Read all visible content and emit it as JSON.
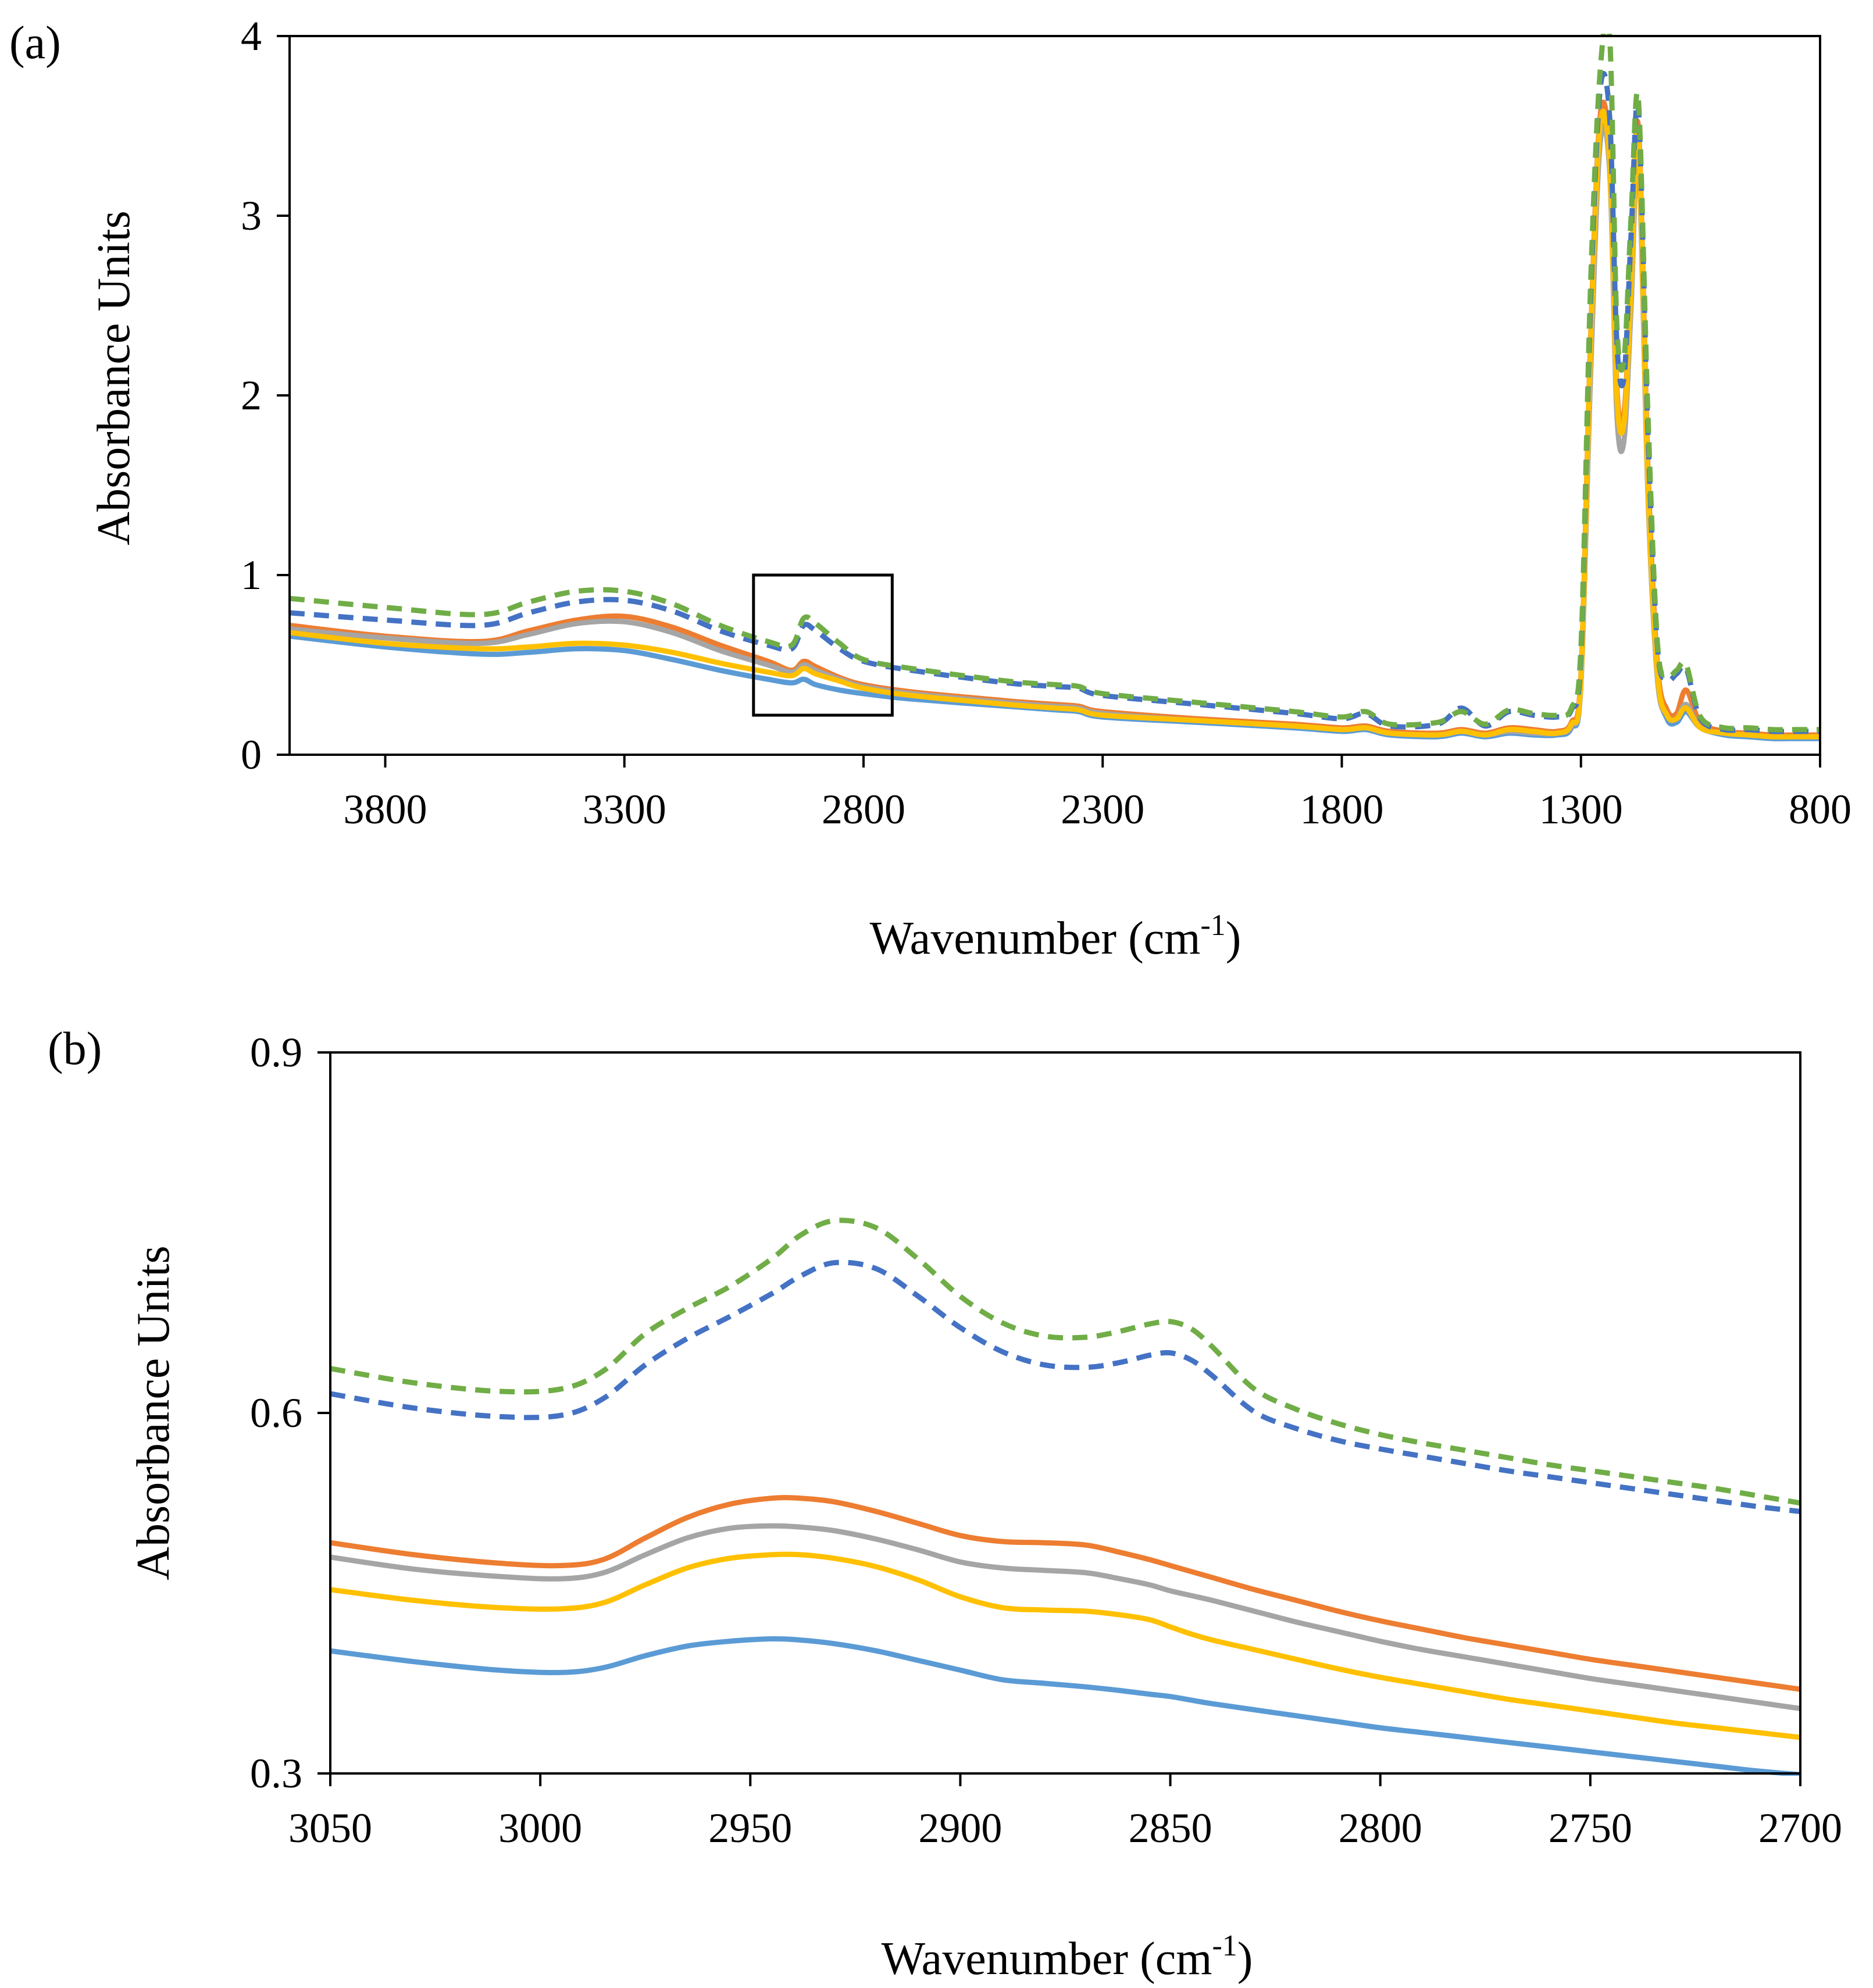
{
  "panels": [
    {
      "label": "(a)",
      "xlabel": "Wavenumber (cm",
      "xlabel_sup": "-1",
      "xlabel_close": ")",
      "ylabel": "Absorbance Units"
    },
    {
      "label": "(b)",
      "xlabel": "Wavenumber (cm",
      "xlabel_sup": "-1",
      "xlabel_close": ")",
      "ylabel": "Absorbance Units"
    }
  ],
  "chart_data": [
    {
      "type": "line",
      "title": "",
      "xlabel": "Wavenumber (cm-1)",
      "ylabel": "Absorbance Units",
      "xlim": [
        4000,
        800
      ],
      "ylim": [
        0,
        4
      ],
      "x_reversed": true,
      "xticks": [
        3800,
        3300,
        2800,
        2300,
        1800,
        1300,
        800
      ],
      "yticks": [
        0,
        1,
        2,
        3,
        4
      ],
      "grid": false,
      "legend": "none",
      "annotation": {
        "type": "rectangle",
        "x_range": [
          3030,
          2740
        ],
        "y_range": [
          0.22,
          1.0
        ]
      },
      "x": [
        4000,
        3800,
        3600,
        3500,
        3400,
        3300,
        3200,
        3100,
        3000,
        2950,
        2925,
        2900,
        2850,
        2800,
        2700,
        2500,
        2400,
        2350,
        2300,
        2100,
        1900,
        1800,
        1750,
        1700,
        1600,
        1550,
        1500,
        1450,
        1400,
        1350,
        1320,
        1300,
        1280,
        1260,
        1240,
        1225,
        1210,
        1195,
        1180,
        1160,
        1140,
        1120,
        1100,
        1080,
        1050,
        1000,
        950,
        900,
        850,
        800
      ],
      "series": [
        {
          "name": "",
          "color": "#5B9BD5",
          "dash": false,
          "values": [
            0.66,
            0.6,
            0.56,
            0.57,
            0.59,
            0.58,
            0.53,
            0.47,
            0.42,
            0.4,
            0.42,
            0.39,
            0.36,
            0.34,
            0.31,
            0.27,
            0.25,
            0.24,
            0.21,
            0.18,
            0.15,
            0.13,
            0.14,
            0.11,
            0.1,
            0.12,
            0.1,
            0.12,
            0.11,
            0.11,
            0.15,
            0.4,
            2.2,
            3.5,
            3.3,
            2.0,
            1.85,
            2.6,
            3.45,
            1.5,
            0.45,
            0.2,
            0.18,
            0.24,
            0.15,
            0.11,
            0.1,
            0.09,
            0.09,
            0.09
          ]
        },
        {
          "name": "",
          "color": "#ED7D31",
          "dash": false,
          "values": [
            0.72,
            0.66,
            0.63,
            0.69,
            0.75,
            0.77,
            0.71,
            0.61,
            0.52,
            0.47,
            0.52,
            0.49,
            0.43,
            0.39,
            0.35,
            0.3,
            0.28,
            0.27,
            0.24,
            0.2,
            0.17,
            0.15,
            0.16,
            0.13,
            0.12,
            0.14,
            0.12,
            0.15,
            0.14,
            0.13,
            0.18,
            0.45,
            2.3,
            3.55,
            3.35,
            2.05,
            1.9,
            2.65,
            3.5,
            1.6,
            0.5,
            0.25,
            0.23,
            0.36,
            0.18,
            0.13,
            0.12,
            0.11,
            0.11,
            0.11
          ]
        },
        {
          "name": "",
          "color": "#A5A5A5",
          "dash": false,
          "values": [
            0.7,
            0.65,
            0.62,
            0.67,
            0.73,
            0.74,
            0.68,
            0.58,
            0.5,
            0.46,
            0.5,
            0.47,
            0.42,
            0.38,
            0.34,
            0.29,
            0.27,
            0.26,
            0.23,
            0.19,
            0.16,
            0.14,
            0.15,
            0.12,
            0.11,
            0.13,
            0.11,
            0.13,
            0.12,
            0.12,
            0.16,
            0.4,
            2.1,
            3.4,
            3.25,
            1.9,
            1.75,
            2.5,
            3.35,
            1.45,
            0.42,
            0.22,
            0.2,
            0.28,
            0.15,
            0.12,
            0.11,
            0.1,
            0.1,
            0.1
          ]
        },
        {
          "name": "",
          "color": "#FFC000",
          "dash": false,
          "values": [
            0.68,
            0.62,
            0.59,
            0.6,
            0.62,
            0.61,
            0.57,
            0.51,
            0.46,
            0.44,
            0.48,
            0.45,
            0.41,
            0.37,
            0.33,
            0.28,
            0.26,
            0.25,
            0.22,
            0.19,
            0.16,
            0.14,
            0.15,
            0.12,
            0.11,
            0.13,
            0.11,
            0.14,
            0.13,
            0.12,
            0.17,
            0.42,
            2.25,
            3.5,
            3.3,
            2.0,
            1.85,
            2.6,
            3.45,
            1.5,
            0.45,
            0.22,
            0.2,
            0.26,
            0.15,
            0.12,
            0.11,
            0.1,
            0.1,
            0.1
          ]
        },
        {
          "name": "",
          "color": "#4472C4",
          "dash": true,
          "values": [
            0.79,
            0.75,
            0.72,
            0.79,
            0.85,
            0.86,
            0.8,
            0.69,
            0.61,
            0.59,
            0.72,
            0.69,
            0.59,
            0.52,
            0.47,
            0.4,
            0.38,
            0.37,
            0.33,
            0.28,
            0.23,
            0.2,
            0.23,
            0.16,
            0.17,
            0.26,
            0.16,
            0.24,
            0.22,
            0.21,
            0.25,
            0.55,
            2.5,
            3.7,
            3.55,
            2.3,
            2.1,
            2.9,
            3.6,
            1.8,
            0.6,
            0.42,
            0.45,
            0.48,
            0.2,
            0.14,
            0.14,
            0.13,
            0.13,
            0.13
          ]
        },
        {
          "name": "",
          "color": "#70AD47",
          "dash": true,
          "values": [
            0.87,
            0.82,
            0.78,
            0.85,
            0.91,
            0.91,
            0.84,
            0.72,
            0.63,
            0.61,
            0.76,
            0.73,
            0.62,
            0.53,
            0.48,
            0.41,
            0.39,
            0.38,
            0.34,
            0.29,
            0.24,
            0.21,
            0.24,
            0.17,
            0.18,
            0.24,
            0.17,
            0.25,
            0.23,
            0.22,
            0.26,
            0.6,
            2.6,
            3.8,
            4.0,
            2.4,
            2.2,
            3.0,
            3.65,
            1.9,
            0.62,
            0.44,
            0.47,
            0.5,
            0.21,
            0.15,
            0.15,
            0.14,
            0.14,
            0.14
          ]
        }
      ]
    },
    {
      "type": "line",
      "title": "",
      "xlabel": "Wavenumber (cm-1)",
      "ylabel": "Absorbance Units",
      "xlim": [
        3050,
        2700
      ],
      "ylim": [
        0.3,
        0.9
      ],
      "x_reversed": true,
      "xticks": [
        3050,
        3000,
        2950,
        2900,
        2850,
        2800,
        2750,
        2700
      ],
      "yticks": [
        0.3,
        0.6,
        0.9
      ],
      "grid": false,
      "legend": "none",
      "x": [
        3050,
        3030,
        3010,
        2995,
        2985,
        2975,
        2965,
        2955,
        2945,
        2938,
        2930,
        2920,
        2910,
        2900,
        2890,
        2880,
        2870,
        2862,
        2855,
        2850,
        2845,
        2840,
        2830,
        2820,
        2810,
        2800,
        2790,
        2780,
        2770,
        2760,
        2750,
        2740,
        2730,
        2720,
        2710,
        2700
      ],
      "series": [
        {
          "name": "",
          "color": "#5B9BD5",
          "dash": false,
          "values": [
            0.402,
            0.393,
            0.386,
            0.384,
            0.388,
            0.398,
            0.406,
            0.41,
            0.412,
            0.411,
            0.408,
            0.402,
            0.394,
            0.386,
            0.378,
            0.375,
            0.372,
            0.369,
            0.366,
            0.364,
            0.361,
            0.358,
            0.353,
            0.348,
            0.343,
            0.338,
            0.334,
            0.33,
            0.326,
            0.322,
            0.318,
            0.314,
            0.31,
            0.306,
            0.302,
            0.299
          ]
        },
        {
          "name": "",
          "color": "#ED7D31",
          "dash": false,
          "values": [
            0.492,
            0.482,
            0.475,
            0.473,
            0.478,
            0.496,
            0.513,
            0.524,
            0.529,
            0.529,
            0.526,
            0.518,
            0.508,
            0.498,
            0.493,
            0.492,
            0.49,
            0.484,
            0.478,
            0.473,
            0.468,
            0.463,
            0.453,
            0.444,
            0.435,
            0.427,
            0.42,
            0.413,
            0.407,
            0.401,
            0.395,
            0.39,
            0.385,
            0.38,
            0.375,
            0.37
          ]
        },
        {
          "name": "",
          "color": "#A5A5A5",
          "dash": false,
          "values": [
            0.48,
            0.47,
            0.464,
            0.462,
            0.467,
            0.482,
            0.496,
            0.504,
            0.506,
            0.505,
            0.502,
            0.495,
            0.486,
            0.476,
            0.471,
            0.469,
            0.467,
            0.462,
            0.457,
            0.452,
            0.448,
            0.444,
            0.435,
            0.426,
            0.418,
            0.41,
            0.403,
            0.397,
            0.391,
            0.385,
            0.379,
            0.374,
            0.369,
            0.364,
            0.359,
            0.354
          ]
        },
        {
          "name": "",
          "color": "#FFC000",
          "dash": false,
          "values": [
            0.453,
            0.444,
            0.438,
            0.437,
            0.442,
            0.457,
            0.471,
            0.479,
            0.482,
            0.482,
            0.479,
            0.472,
            0.461,
            0.447,
            0.438,
            0.436,
            0.435,
            0.432,
            0.428,
            0.422,
            0.416,
            0.411,
            0.403,
            0.395,
            0.387,
            0.38,
            0.374,
            0.368,
            0.362,
            0.357,
            0.352,
            0.347,
            0.342,
            0.338,
            0.334,
            0.33
          ]
        },
        {
          "name": "",
          "color": "#4472C4",
          "dash": true,
          "values": [
            0.616,
            0.604,
            0.597,
            0.598,
            0.612,
            0.64,
            0.662,
            0.68,
            0.699,
            0.714,
            0.725,
            0.72,
            0.697,
            0.671,
            0.651,
            0.64,
            0.638,
            0.642,
            0.648,
            0.65,
            0.644,
            0.631,
            0.601,
            0.587,
            0.577,
            0.57,
            0.564,
            0.558,
            0.552,
            0.547,
            0.542,
            0.537,
            0.532,
            0.527,
            0.522,
            0.518
          ]
        },
        {
          "name": "",
          "color": "#70AD47",
          "dash": true,
          "values": [
            0.637,
            0.625,
            0.618,
            0.62,
            0.635,
            0.666,
            0.687,
            0.705,
            0.728,
            0.748,
            0.76,
            0.754,
            0.728,
            0.697,
            0.675,
            0.664,
            0.663,
            0.668,
            0.674,
            0.676,
            0.67,
            0.655,
            0.62,
            0.603,
            0.591,
            0.582,
            0.575,
            0.569,
            0.563,
            0.557,
            0.552,
            0.547,
            0.542,
            0.537,
            0.531,
            0.525
          ]
        }
      ]
    }
  ]
}
